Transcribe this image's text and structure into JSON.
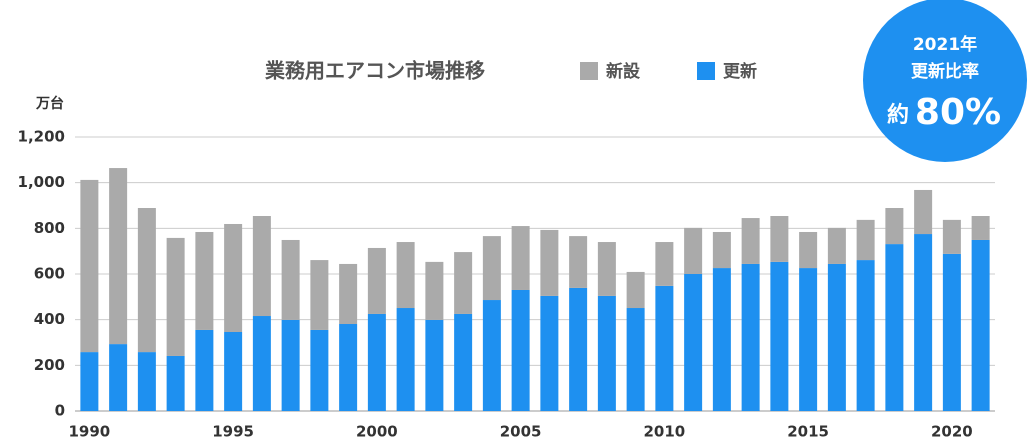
{
  "chart_data": {
    "type": "stacked_bar",
    "title": "業務用エアコン市場推移",
    "y_label": "万台",
    "categories": [
      "1990",
      null,
      null,
      null,
      null,
      "1995",
      null,
      null,
      null,
      null,
      "2000",
      null,
      null,
      null,
      null,
      "2005",
      null,
      null,
      null,
      null,
      "2010",
      null,
      null,
      null,
      null,
      "2015",
      null,
      null,
      null,
      null,
      "2020",
      null
    ],
    "series": [
      {
        "name": "新設",
        "color": "#aaaaaa",
        "values": [
          754,
          771,
          631,
          517,
          429,
          473,
          438,
          350,
          306,
          263,
          289,
          289,
          254,
          271,
          280,
          280,
          289,
          227,
          236,
          158,
          192,
          202,
          158,
          201,
          201,
          158,
          158,
          176,
          158,
          193,
          149,
          105
        ]
      },
      {
        "name": "更新",
        "color": "#1e90f0",
        "values": [
          258,
          293,
          258,
          241,
          355,
          346,
          416,
          399,
          355,
          381,
          425,
          451,
          399,
          425,
          486,
          530,
          504,
          539,
          504,
          451,
          548,
          600,
          626,
          644,
          653,
          626,
          644,
          661,
          731,
          775,
          688,
          749
        ]
      }
    ],
    "ylim": [
      0,
      1200
    ],
    "yticks": [
      0,
      200,
      400,
      600,
      800,
      {
        "value": 1000,
        "label": "1,000"
      },
      {
        "value": 1200,
        "label": "1,200"
      }
    ],
    "grid": true,
    "badge": {
      "line1": "2021年",
      "line2": "更新比率",
      "prefix": "約",
      "value": "80%"
    }
  }
}
